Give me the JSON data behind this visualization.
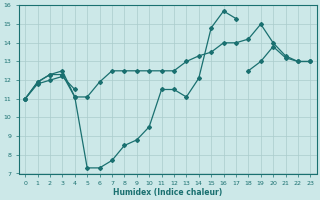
{
  "xlabel": "Humidex (Indice chaleur)",
  "background_color": "#cce8e8",
  "line_color": "#1a7070",
  "grid_color": "#aacccc",
  "xlim": [
    -0.5,
    23.5
  ],
  "ylim": [
    7,
    16
  ],
  "xticks": [
    0,
    1,
    2,
    3,
    4,
    5,
    6,
    7,
    8,
    9,
    10,
    11,
    12,
    13,
    14,
    15,
    16,
    17,
    18,
    19,
    20,
    21,
    22,
    23
  ],
  "yticks": [
    7,
    8,
    9,
    10,
    11,
    12,
    13,
    14,
    15,
    16
  ],
  "line1_x": [
    0,
    1,
    2,
    3,
    4,
    5,
    6,
    7,
    8,
    9,
    10,
    11,
    12,
    13,
    14,
    15,
    16,
    17,
    18,
    19,
    20,
    21,
    22,
    23
  ],
  "line1_y": [
    11.0,
    11.9,
    12.3,
    12.3,
    11.1,
    11.1,
    11.9,
    12.5,
    12.5,
    12.5,
    12.5,
    12.5,
    12.5,
    13.0,
    13.3,
    13.5,
    14.0,
    14.0,
    14.2,
    15.0,
    14.0,
    13.3,
    13.0,
    13.0
  ],
  "line2_x": [
    0,
    1,
    2,
    3,
    4,
    5,
    6,
    7,
    8,
    9,
    10,
    11,
    12,
    13,
    14,
    15,
    16,
    17
  ],
  "line2_y": [
    11.0,
    11.9,
    12.3,
    12.5,
    11.1,
    7.3,
    7.3,
    7.7,
    8.5,
    8.8,
    9.5,
    11.5,
    11.5,
    11.1,
    12.1,
    14.8,
    15.7,
    15.3
  ],
  "line3_x_seg1": [
    0,
    1,
    2,
    3,
    4
  ],
  "line3_y_seg1": [
    11.0,
    11.8,
    12.0,
    12.2,
    11.5
  ],
  "line3_x_seg2": [
    18,
    19,
    20,
    21,
    22,
    23
  ],
  "line3_y_seg2": [
    12.5,
    13.0,
    13.8,
    13.2,
    13.0,
    13.0
  ]
}
